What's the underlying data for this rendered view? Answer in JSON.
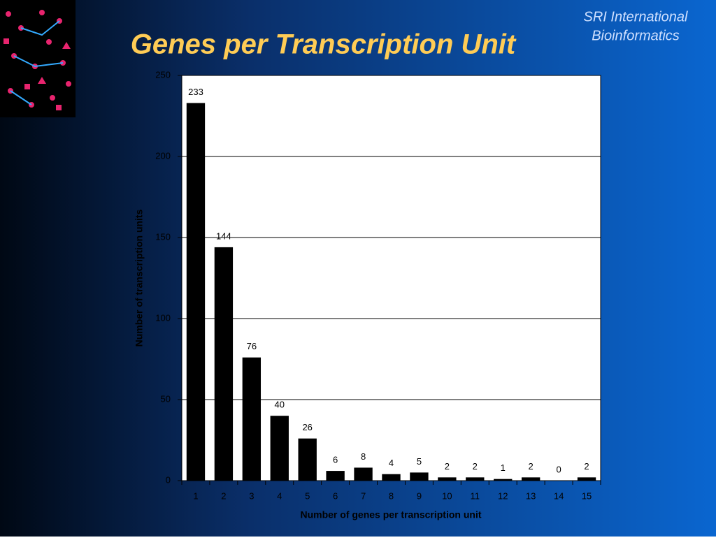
{
  "header": {
    "org_line1": "SRI International",
    "org_line2": "Bioinformatics"
  },
  "chart_data": {
    "type": "bar",
    "title": "Genes per Transcription Unit",
    "x_label": "Number of genes per transcription unit",
    "y_label": "Number of transcription units",
    "categories": [
      "1",
      "2",
      "3",
      "4",
      "5",
      "6",
      "7",
      "8",
      "9",
      "10",
      "11",
      "12",
      "13",
      "14",
      "15"
    ],
    "values": [
      233,
      144,
      76,
      40,
      26,
      6,
      8,
      4,
      5,
      2,
      2,
      1,
      2,
      0,
      2
    ],
    "color": "#000000",
    "ylim": [
      0,
      250
    ],
    "yticks": [
      0,
      50,
      100,
      150,
      200,
      250
    ],
    "grid": true
  }
}
